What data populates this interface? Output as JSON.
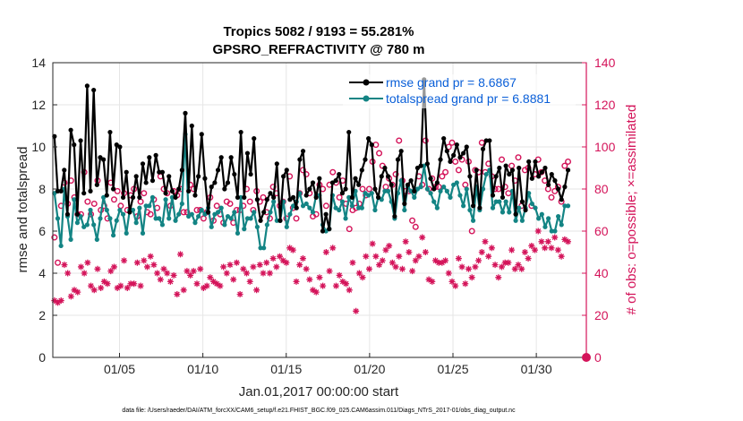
{
  "chart_data": {
    "type": "line",
    "title": "Tropics 5082 / 9193 = 55.281%",
    "subtitle": "GPSRO_REFRACTIVITY @ 780 m",
    "xlabel": "Jan.01,2017 00:00:00 start",
    "ylabel_left": "rmse and totalspread",
    "ylabel_right": "# of obs: o=possible; ×=assimilated",
    "footer": "data file: /Users/raeder/DAI/ATM_forcXX/CAM6_setup/f.e21.FHIST_BGC.f09_025.CAM6assim.011/Diags_NTrS_2017-01/obs_diag_output.nc",
    "xlim": [
      1,
      33
    ],
    "xticks": [
      5,
      10,
      15,
      20,
      25,
      30
    ],
    "xtick_labels": [
      "01/05",
      "01/10",
      "01/15",
      "01/20",
      "01/25",
      "01/30"
    ],
    "ylim_left": [
      0,
      14
    ],
    "yticks_left": [
      0,
      2,
      4,
      6,
      8,
      10,
      12,
      14
    ],
    "ylim_right": [
      0,
      140
    ],
    "yticks_right": [
      0,
      20,
      40,
      60,
      80,
      100,
      120,
      140
    ],
    "grid": true,
    "legend_position": "top-right",
    "colors": {
      "rmse": "#000000",
      "spread": "#138484",
      "obs": "#d4145a",
      "legend_text": "#0a5fd8",
      "grid": "#e6e6e6"
    },
    "series": [
      {
        "name": "rmse grand pr = 8.6867",
        "axis": "left",
        "values": [
          10.5,
          7.9,
          7.9,
          8.9,
          6.8,
          10.8,
          10.1,
          6.8,
          10.3,
          7.8,
          12.9,
          7.9,
          12.7,
          8.2,
          9.5,
          9.4,
          7.7,
          10.7,
          8.0,
          10.1,
          10.0,
          7.6,
          8.8,
          6.9,
          7.6,
          8.6,
          7.6,
          9.2,
          8.3,
          9.5,
          8.4,
          9.6,
          8.8,
          8.8,
          7.8,
          8.6,
          7.9,
          7.6,
          8.0,
          8.9,
          11.6,
          7.9,
          11.0,
          7.7,
          8.6,
          10.6,
          8.5,
          6.9,
          8.1,
          8.3,
          8.9,
          9.5,
          8.0,
          8.3,
          9.5,
          8.7,
          7.6,
          10.7,
          7.6,
          9.7,
          8.7,
          10.4,
          7.5,
          6.5,
          6.9,
          7.5,
          7.8,
          7.6,
          9.2,
          6.5,
          8.6,
          8.9,
          7.5,
          7.6,
          7.1,
          9.4,
          9.8,
          7.7,
          8.0,
          8.3,
          7.6,
          8.5,
          6.0,
          6.8,
          6.1,
          8.3,
          8.4,
          8.7,
          7.8,
          8.0,
          10.7,
          7.6,
          8.5,
          8.2,
          8.9,
          9.4,
          10.4,
          10.1,
          8.0,
          7.6,
          8.6,
          9.0,
          8.6,
          8.2,
          6.7,
          9.4,
          9.8,
          7.3,
          8.2,
          8.4,
          7.9,
          9.0,
          9.1,
          13.2,
          9.2,
          8.5,
          8.0,
          8.3,
          9.4,
          10.4,
          9.8,
          9.3,
          9.6,
          10.1,
          9.5,
          9.7,
          10.0,
          8.6,
          7.2,
          8.9,
          7.1,
          9.9,
          10.3,
          10.3,
          7.7,
          8.6,
          9.0,
          7.6,
          9.1,
          8.7,
          8.9,
          6.8,
          9.0,
          7.4,
          7.0,
          9.3,
          8.5,
          9.3,
          8.6,
          8.8,
          9.0,
          8.2,
          8.7,
          8.4,
          8.0,
          7.5,
          8.1,
          8.9
        ],
        "marker": "dot"
      },
      {
        "name": "totalspread grand pr = 6.8881",
        "axis": "left",
        "values": [
          7.8,
          6.6,
          5.3,
          8.0,
          6.7,
          5.6,
          7.5,
          6.4,
          6.7,
          6.2,
          6.3,
          7.0,
          6.3,
          5.6,
          6.6,
          7.6,
          7.0,
          6.6,
          5.8,
          6.5,
          7.0,
          6.8,
          5.9,
          7.0,
          7.0,
          6.4,
          7.1,
          5.9,
          7.2,
          7.2,
          7.6,
          6.6,
          6.6,
          6.3,
          7.5,
          6.6,
          7.6,
          6.5,
          6.8,
          7.3,
          10.6,
          6.7,
          6.8,
          6.4,
          6.7,
          7.0,
          6.8,
          7.1,
          6.2,
          6.8,
          6.9,
          7.1,
          6.3,
          6.7,
          6.6,
          6.9,
          5.9,
          7.6,
          6.1,
          6.6,
          6.6,
          6.9,
          6.2,
          5.2,
          5.2,
          6.3,
          6.9,
          7.4,
          6.5,
          6.5,
          7.4,
          6.2,
          6.8,
          7.2,
          7.4,
          7.8,
          7.2,
          7.3,
          7.1,
          6.9,
          7.7,
          7.7,
          6.3,
          6.0,
          6.1,
          7.7,
          7.1,
          7.0,
          7.4,
          6.6,
          7.6,
          7.2,
          7.9,
          7.1,
          7.1,
          7.8,
          7.7,
          7.8,
          7.0,
          7.6,
          7.5,
          7.9,
          7.9,
          7.4,
          6.6,
          7.8,
          8.4,
          7.0,
          8.1,
          7.9,
          7.6,
          8.0,
          8.1,
          9.1,
          8.0,
          7.8,
          7.4,
          7.1,
          7.9,
          8.1,
          7.9,
          7.6,
          8.2,
          8.3,
          7.7,
          7.2,
          8.0,
          7.0,
          6.5,
          8.1,
          7.0,
          8.0,
          8.7,
          8.9,
          7.1,
          7.4,
          7.4,
          6.9,
          7.4,
          6.9,
          7.9,
          6.5,
          7.1,
          6.5,
          7.1,
          7.8,
          7.3,
          7.1,
          6.6,
          6.8,
          6.2,
          6.6,
          6.0,
          6.0,
          6.7,
          6.3,
          7.2,
          7.2
        ],
        "marker": "dot"
      },
      {
        "name": "obs possible",
        "axis": "right",
        "marker": "o",
        "values": [
          57,
          45,
          72,
          83,
          73,
          84,
          76,
          68,
          68,
          88,
          74,
          68,
          73,
          84,
          70,
          72,
          66,
          83,
          75,
          79,
          72,
          78,
          70,
          77,
          80,
          67,
          74,
          78,
          69,
          68,
          75,
          71,
          86,
          80,
          78,
          72,
          79,
          77,
          80,
          69,
          69,
          82,
          80,
          70,
          70,
          66,
          69,
          76,
          65,
          72,
          68,
          64,
          74,
          73,
          64,
          70,
          70,
          72,
          80,
          74,
          70,
          79,
          74,
          76,
          69,
          66,
          81,
          78,
          72,
          74,
          66,
          86,
          71,
          66,
          78,
          89,
          87,
          78,
          67,
          68,
          82,
          80,
          72,
          82,
          88,
          83,
          76,
          84,
          73,
          61,
          70,
          71,
          73,
          80,
          77,
          80,
          93,
          101,
          97,
          91,
          81,
          85,
          82,
          87,
          103,
          84,
          79,
          79,
          65,
          62,
          86,
          82,
          103,
          80,
          85,
          81,
          81,
          86,
          88,
          100,
          102,
          93,
          89,
          94,
          82,
          93,
          60,
          89,
          88,
          102,
          88,
          92,
          86,
          80,
          80,
          94,
          81,
          78,
          91,
          84,
          95,
          72,
          89,
          90,
          72,
          87,
          94,
          88,
          84,
          80,
          76,
          79,
          81,
          74,
          91,
          93
        ],
        "markers_only": true
      },
      {
        "name": "obs assimilated",
        "axis": "right",
        "marker": "*",
        "values": [
          27,
          26,
          27,
          44,
          40,
          29,
          32,
          31,
          43,
          40,
          45,
          34,
          32,
          42,
          33,
          36,
          35,
          41,
          43,
          33,
          34,
          46,
          33,
          35,
          35,
          45,
          34,
          46,
          43,
          48,
          44,
          40,
          37,
          42,
          40,
          36,
          39,
          30,
          49,
          32,
          41,
          39,
          41,
          35,
          42,
          33,
          34,
          38,
          36,
          35,
          34,
          43,
          40,
          44,
          37,
          45,
          30,
          42,
          40,
          36,
          43,
          32,
          44,
          40,
          45,
          40,
          47,
          43,
          48,
          46,
          45,
          52,
          51,
          36,
          44,
          47,
          42,
          37,
          32,
          31,
          38,
          34,
          50,
          41,
          52,
          34,
          39,
          36,
          35,
          32,
          45,
          22,
          40,
          38,
          48,
          42,
          54,
          48,
          44,
          46,
          51,
          53,
          45,
          43,
          48,
          42,
          55,
          50,
          41,
          46,
          48,
          57,
          50,
          37,
          36,
          46,
          45,
          45,
          46,
          40,
          36,
          34,
          47,
          43,
          35,
          42,
          38,
          43,
          46,
          50,
          55,
          48,
          52,
          44,
          38,
          43,
          45,
          45,
          51,
          42,
          44,
          42,
          50,
          47,
          53,
          51,
          60,
          55,
          52,
          55,
          52,
          57,
          51,
          48,
          56,
          55
        ],
        "markers_only": true
      }
    ]
  }
}
